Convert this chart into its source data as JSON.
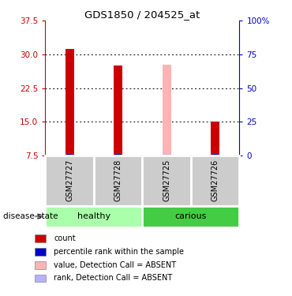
{
  "title": "GDS1850 / 204525_at",
  "samples": [
    "GSM27727",
    "GSM27728",
    "GSM27725",
    "GSM27726"
  ],
  "bar_values": [
    31.3,
    27.6,
    27.7,
    15.0
  ],
  "bar_colors": [
    "#cc0000",
    "#cc0000",
    "#ffb3b3",
    "#cc0000"
  ],
  "rank_values": [
    0.3,
    0.3,
    0.3,
    0.3
  ],
  "rank_colors": [
    "#0000cc",
    "#0000cc",
    "#b3b3ff",
    "#0000cc"
  ],
  "left_yticks": [
    7.5,
    15.0,
    22.5,
    30.0,
    37.5
  ],
  "right_yticks": [
    0,
    25,
    50,
    75,
    100
  ],
  "ymin": 7.5,
  "ymax": 37.5,
  "groups": [
    {
      "label": "healthy",
      "start": 0,
      "end": 2,
      "color": "#aaffaa"
    },
    {
      "label": "carious",
      "start": 2,
      "end": 4,
      "color": "#44cc44"
    }
  ],
  "disease_state_label": "disease state",
  "legend_items": [
    {
      "label": "count",
      "color": "#cc0000"
    },
    {
      "label": "percentile rank within the sample",
      "color": "#0000cc"
    },
    {
      "label": "value, Detection Call = ABSENT",
      "color": "#ffb3b3"
    },
    {
      "label": "rank, Detection Call = ABSENT",
      "color": "#b3b3ff"
    }
  ],
  "sample_box_color": "#cccccc",
  "bar_width": 0.18
}
